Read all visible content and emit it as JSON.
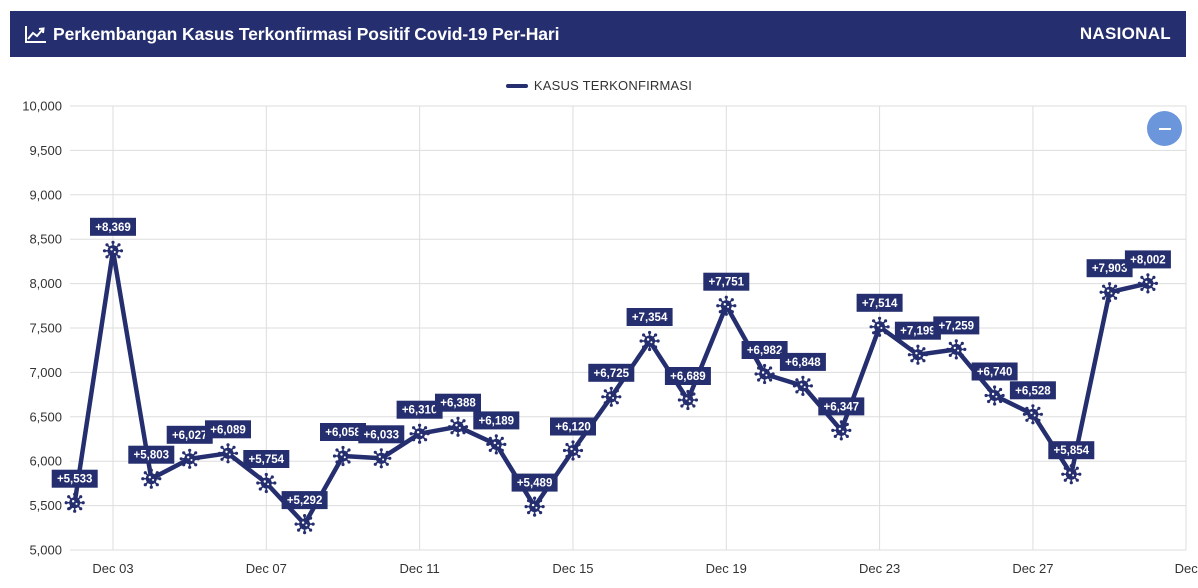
{
  "header": {
    "title": "Perkembangan Kasus Terkonfirmasi Positif Covid-19 Per-Hari",
    "scope": "NASIONAL",
    "icon": "line-chart-icon"
  },
  "colors": {
    "primary": "#252e6e",
    "accent": "#6b96dc",
    "grid": "#dddddd"
  },
  "controls": {
    "zoom_out_icon": "minus-icon"
  },
  "chart_data": {
    "type": "line",
    "legend": {
      "label": "KASUS TERKONFIRMASI",
      "position": "top-center"
    },
    "ylim": [
      5000,
      10000
    ],
    "y_ticks": [
      "5,000",
      "5,500",
      "6,000",
      "6,500",
      "7,000",
      "7,500",
      "8,000",
      "8,500",
      "9,000",
      "9,500",
      "10,000"
    ],
    "x_ticks": [
      "Dec 03",
      "Dec 07",
      "Dec 11",
      "Dec 15",
      "Dec 19",
      "Dec 23",
      "Dec 27",
      "Dec"
    ],
    "grid": true,
    "series": [
      {
        "name": "KASUS TERKONFIRMASI",
        "points": [
          {
            "x": "Dec 02",
            "y": 5533,
            "label": "+5,533"
          },
          {
            "x": "Dec 03",
            "y": 8369,
            "label": "+8,369"
          },
          {
            "x": "Dec 04",
            "y": 5803,
            "label": "+5,803"
          },
          {
            "x": "Dec 05",
            "y": 6027,
            "label": "+6,027"
          },
          {
            "x": "Dec 06",
            "y": 6089,
            "label": "+6,089"
          },
          {
            "x": "Dec 07",
            "y": 5754,
            "label": "+5,754"
          },
          {
            "x": "Dec 08",
            "y": 5292,
            "label": "+5,292"
          },
          {
            "x": "Dec 09",
            "y": 6058,
            "label": "+6,058"
          },
          {
            "x": "Dec 10",
            "y": 6033,
            "label": "+6,033"
          },
          {
            "x": "Dec 11",
            "y": 6310,
            "label": "+6,310"
          },
          {
            "x": "Dec 12",
            "y": 6388,
            "label": "+6,388"
          },
          {
            "x": "Dec 13",
            "y": 6189,
            "label": "+6,189"
          },
          {
            "x": "Dec 14",
            "y": 5489,
            "label": "+5,489"
          },
          {
            "x": "Dec 15",
            "y": 6120,
            "label": "+6,120"
          },
          {
            "x": "Dec 16",
            "y": 6725,
            "label": "+6,725"
          },
          {
            "x": "Dec 17",
            "y": 7354,
            "label": "+7,354"
          },
          {
            "x": "Dec 18",
            "y": 6689,
            "label": "+6,689"
          },
          {
            "x": "Dec 19",
            "y": 7751,
            "label": "+7,751"
          },
          {
            "x": "Dec 20",
            "y": 6982,
            "label": "+6,982"
          },
          {
            "x": "Dec 21",
            "y": 6848,
            "label": "+6,848"
          },
          {
            "x": "Dec 22",
            "y": 6347,
            "label": "+6,347"
          },
          {
            "x": "Dec 23",
            "y": 7514,
            "label": "+7,514"
          },
          {
            "x": "Dec 24",
            "y": 7199,
            "label": "+7,199"
          },
          {
            "x": "Dec 25",
            "y": 7259,
            "label": "+7,259"
          },
          {
            "x": "Dec 26",
            "y": 6740,
            "label": "+6,740"
          },
          {
            "x": "Dec 27",
            "y": 6528,
            "label": "+6,528"
          },
          {
            "x": "Dec 28",
            "y": 5854,
            "label": "+5,854"
          },
          {
            "x": "Dec 29",
            "y": 7903,
            "label": "+7,903"
          },
          {
            "x": "Dec 30",
            "y": 8002,
            "label": "+8,002"
          }
        ]
      }
    ]
  }
}
